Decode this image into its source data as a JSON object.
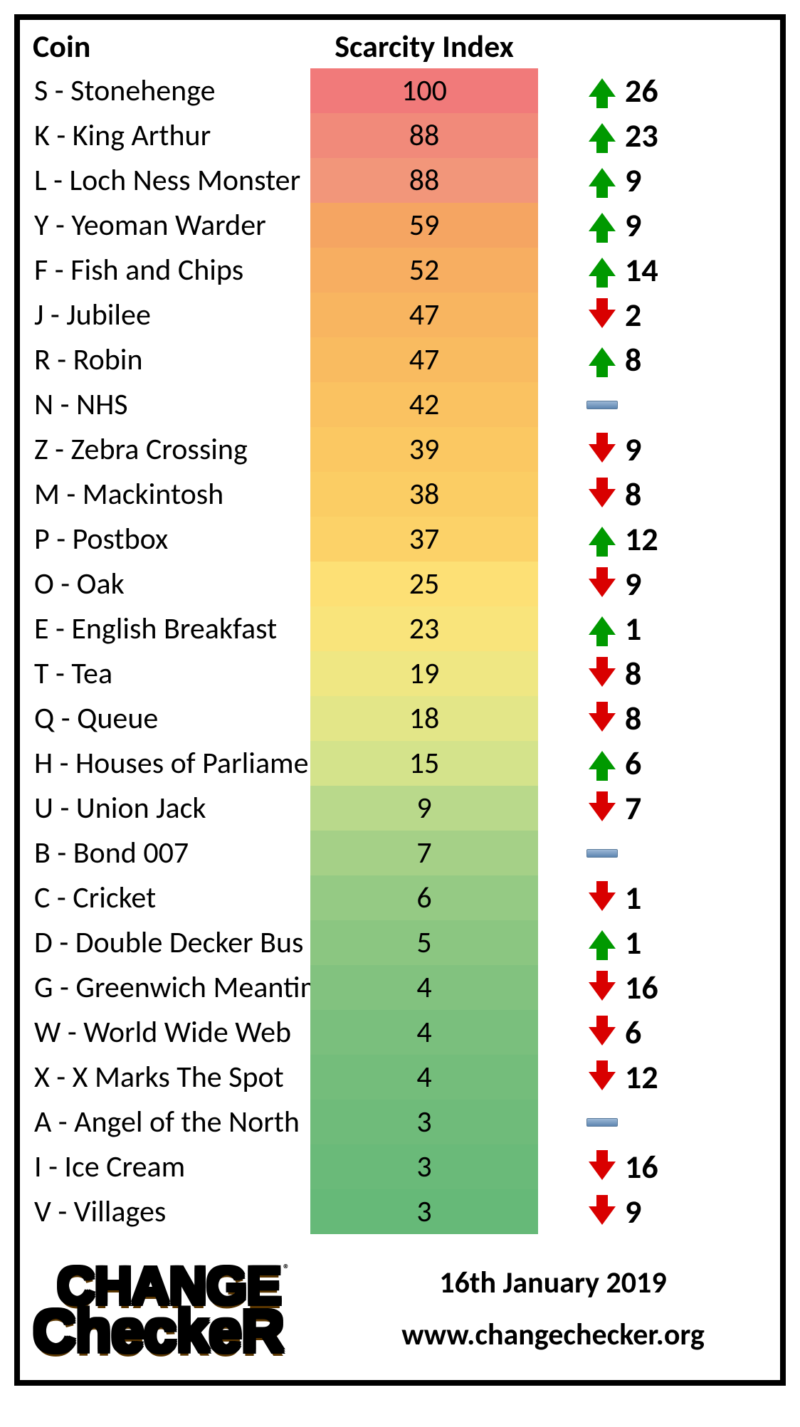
{
  "headers": {
    "coin": "Coin",
    "scarcity": "Scarcity Index"
  },
  "footer": {
    "date": "16th January 2019",
    "url": "www.changechecker.org",
    "logo_top": "CHANGE",
    "logo_bottom": "CheckeR",
    "logo_reg": "®"
  },
  "colors": {
    "up": "#009900",
    "down": "#d90000",
    "flat": "#6a8dba"
  },
  "rows": [
    {
      "name": "S - Stonehenge",
      "scarcity": 100,
      "bg": "#f17a7a",
      "change": 26,
      "dir": "up"
    },
    {
      "name": "K - King Arthur",
      "scarcity": 88,
      "bg": "#f18a7a",
      "change": 23,
      "dir": "up"
    },
    {
      "name": "L - Loch Ness Monster",
      "scarcity": 88,
      "bg": "#f2967a",
      "change": 9,
      "dir": "up"
    },
    {
      "name": "Y - Yeoman Warder",
      "scarcity": 59,
      "bg": "#f5a562",
      "change": 9,
      "dir": "up"
    },
    {
      "name": "F - Fish and Chips",
      "scarcity": 52,
      "bg": "#f7ae61",
      "change": 14,
      "dir": "up"
    },
    {
      "name": "J - Jubilee",
      "scarcity": 47,
      "bg": "#f8b560",
      "change": 2,
      "dir": "down"
    },
    {
      "name": "R - Robin",
      "scarcity": 47,
      "bg": "#f9bb60",
      "change": 8,
      "dir": "up"
    },
    {
      "name": "N - NHS",
      "scarcity": 42,
      "bg": "#fac261",
      "change": "",
      "dir": "flat"
    },
    {
      "name": "Z - Zebra Crossing",
      "scarcity": 39,
      "bg": "#fbc862",
      "change": 9,
      "dir": "down"
    },
    {
      "name": "M - Mackintosh",
      "scarcity": 38,
      "bg": "#fbcd64",
      "change": 8,
      "dir": "down"
    },
    {
      "name": "P - Postbox",
      "scarcity": 37,
      "bg": "#fcd268",
      "change": 12,
      "dir": "up"
    },
    {
      "name": "O - Oak",
      "scarcity": 25,
      "bg": "#fde075",
      "change": 9,
      "dir": "down"
    },
    {
      "name": "E - English Breakfast",
      "scarcity": 23,
      "bg": "#f9e47b",
      "change": 1,
      "dir": "up"
    },
    {
      "name": "T - Tea",
      "scarcity": 19,
      "bg": "#efe783",
      "change": 8,
      "dir": "down"
    },
    {
      "name": "Q - Queue",
      "scarcity": 18,
      "bg": "#e3e688",
      "change": 8,
      "dir": "down"
    },
    {
      "name": "H - Houses of Parliament",
      "scarcity": 15,
      "bg": "#d4e38b",
      "change": 6,
      "dir": "up"
    },
    {
      "name": "U - Union Jack",
      "scarcity": 9,
      "bg": "#b9d98b",
      "change": 7,
      "dir": "down"
    },
    {
      "name": "B - Bond 007",
      "scarcity": 7,
      "bg": "#a5d087",
      "change": "",
      "dir": "flat"
    },
    {
      "name": "C - Cricket",
      "scarcity": 6,
      "bg": "#95ca84",
      "change": 1,
      "dir": "down"
    },
    {
      "name": "D - Double Decker Bus",
      "scarcity": 5,
      "bg": "#8bc681",
      "change": 1,
      "dir": "up"
    },
    {
      "name": "G - Greenwich Meantime",
      "scarcity": 4,
      "bg": "#82c27f",
      "change": 16,
      "dir": "down"
    },
    {
      "name": "W - World Wide Web",
      "scarcity": 4,
      "bg": "#7abf7d",
      "change": 6,
      "dir": "down"
    },
    {
      "name": "X - X Marks The Spot",
      "scarcity": 4,
      "bg": "#74bd7b",
      "change": 12,
      "dir": "down"
    },
    {
      "name": "A - Angel of the North",
      "scarcity": 3,
      "bg": "#6fbb7a",
      "change": "",
      "dir": "flat"
    },
    {
      "name": "I - Ice Cream",
      "scarcity": 3,
      "bg": "#6aba79",
      "change": 16,
      "dir": "down"
    },
    {
      "name": "V - Villages",
      "scarcity": 3,
      "bg": "#66b978",
      "change": 9,
      "dir": "down"
    }
  ]
}
